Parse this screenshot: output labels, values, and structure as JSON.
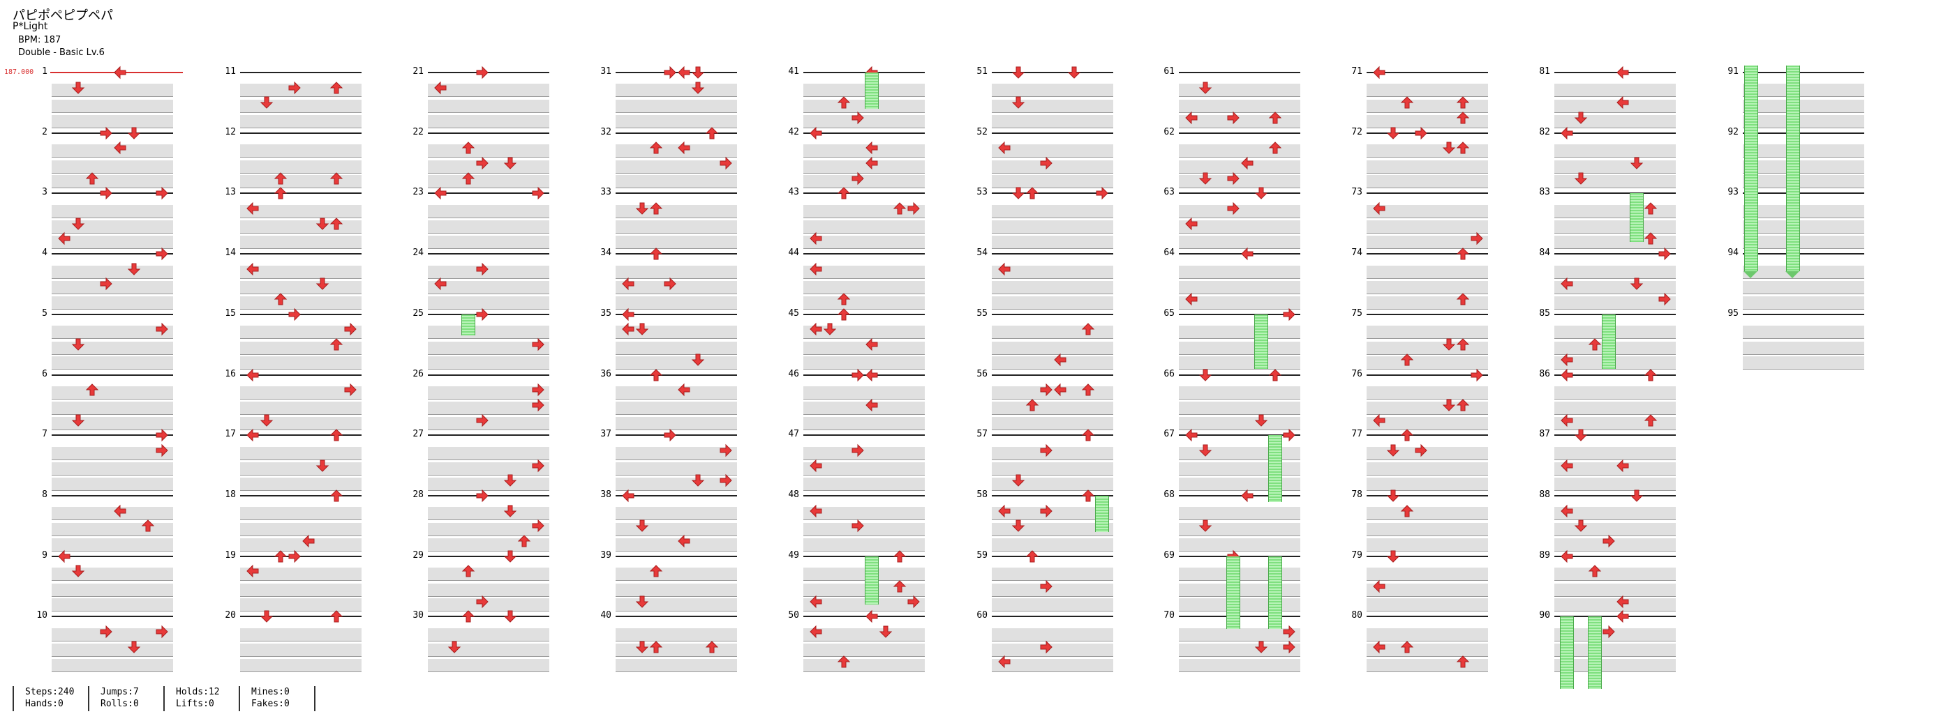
{
  "header": {
    "song_title": "パピポペピプペパ",
    "artist": "P*Light",
    "bpm_text": "BPM: 187",
    "difficulty_text": "Double - Basic Lv.6"
  },
  "bpm_marker": "187.000",
  "columns": [
    [
      "1",
      "2",
      "3",
      "4",
      "5",
      "6",
      "7",
      "8",
      "9",
      "10"
    ],
    [
      "11",
      "12",
      "13",
      "14",
      "15",
      "16",
      "17",
      "18",
      "19",
      "20"
    ],
    [
      "21",
      "22",
      "23",
      "24",
      "25",
      "26",
      "27",
      "28",
      "29",
      "30"
    ],
    [
      "31",
      "32",
      "33",
      "34",
      "35",
      "36",
      "37",
      "38",
      "39",
      "40"
    ],
    [
      "41",
      "42",
      "43",
      "44",
      "45",
      "46",
      "47",
      "48",
      "49",
      "50"
    ],
    [
      "51",
      "52",
      "53",
      "54",
      "55",
      "56",
      "57",
      "58",
      "59",
      "60"
    ],
    [
      "61",
      "62",
      "63",
      "64",
      "65",
      "66",
      "67",
      "68",
      "69",
      "70"
    ],
    [
      "71",
      "72",
      "73",
      "74",
      "75",
      "76",
      "77",
      "78",
      "79",
      "80"
    ],
    [
      "81",
      "82",
      "83",
      "84",
      "85",
      "86",
      "87",
      "88",
      "89",
      "90"
    ],
    [
      "91",
      "92",
      "93",
      "94",
      "95"
    ]
  ],
  "stats": {
    "steps": "Steps:240",
    "hands": "Hands:0",
    "jumps": "Jumps:7",
    "rolls": "Rolls:0",
    "holds": "Holds:12",
    "lifts": "Lifts:0",
    "mines": "Mines:0",
    "fakes": "Fakes:0"
  },
  "colors": {
    "arrow": "#e83a3a",
    "hold": "#7fe07f",
    "band": "#e0e0e0",
    "bpm": "#d83030"
  },
  "icons": {
    "note": "arrow-note-icon",
    "hold": "hold-note-icon"
  }
}
